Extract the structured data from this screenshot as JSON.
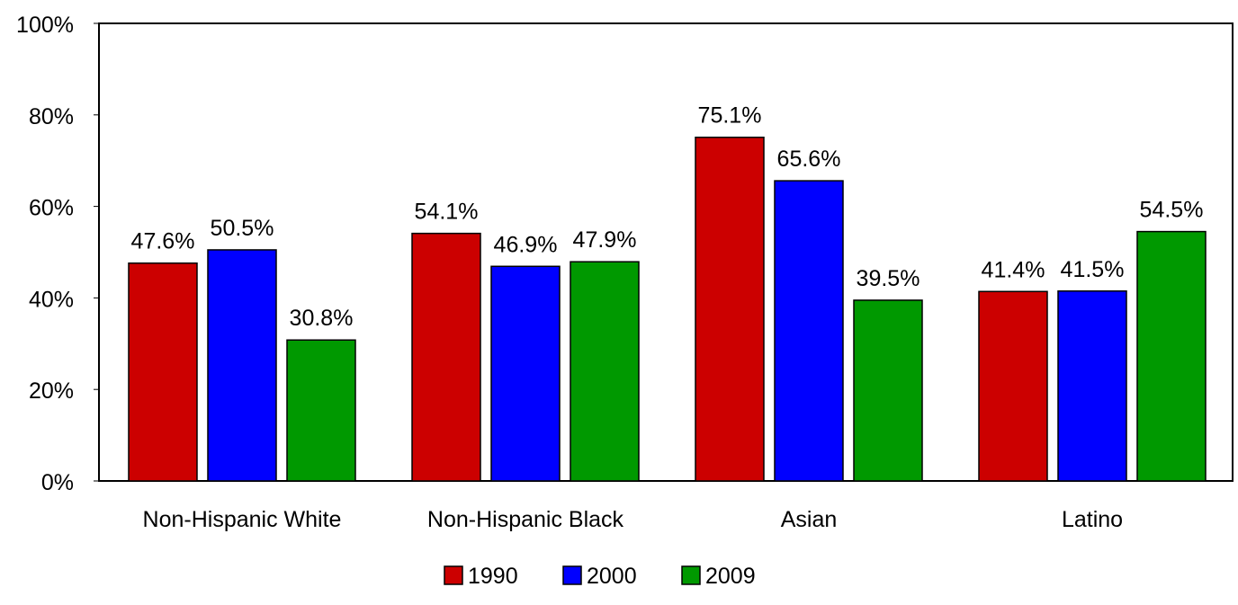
{
  "chart_data": {
    "type": "bar",
    "categories": [
      "Non-Hispanic White",
      "Non-Hispanic Black",
      "Asian",
      "Latino"
    ],
    "series": [
      {
        "name": "1990",
        "color": "#cc0000",
        "values": [
          47.6,
          54.1,
          75.1,
          41.4
        ],
        "labels": [
          "47.6%",
          "54.1%",
          "75.1%",
          "41.4%"
        ]
      },
      {
        "name": "2000",
        "color": "#0000ff",
        "values": [
          50.5,
          46.9,
          65.6,
          41.5
        ],
        "labels": [
          "50.5%",
          "46.9%",
          "65.6%",
          "41.5%"
        ]
      },
      {
        "name": "2009",
        "color": "#009900",
        "values": [
          30.8,
          47.9,
          39.5,
          54.5
        ],
        "labels": [
          "30.8%",
          "47.9%",
          "39.5%",
          "54.5%"
        ]
      }
    ],
    "ylim": [
      0,
      100
    ],
    "yticks": [
      0,
      20,
      40,
      60,
      80,
      100
    ],
    "ytick_labels": [
      "0%",
      "20%",
      "40%",
      "60%",
      "80%",
      "100%"
    ],
    "grid": false,
    "legend_position": "bottom-center"
  }
}
